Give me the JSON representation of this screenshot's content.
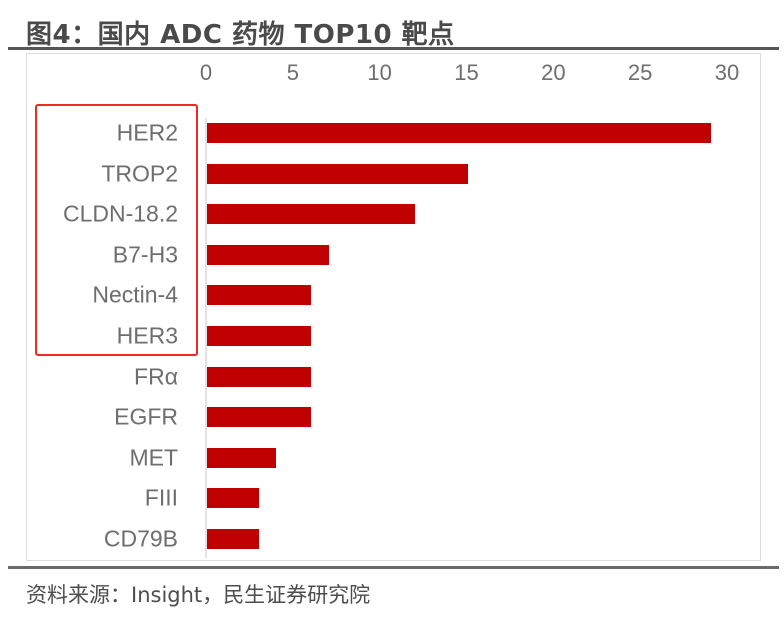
{
  "title": "图4：国内 ADC 药物 TOP10 靶点",
  "source": "资料来源：Insight，民生证券研究院",
  "colors": {
    "bar": "#c00000",
    "highlight_box": "#ee2a24",
    "text": "#6e6e6e"
  },
  "highlight": {
    "label": "highlighted-targets",
    "items": [
      "HER2",
      "TROP2",
      "CLDN-18.2",
      "B7-H3",
      "Nectin-4",
      "HER3"
    ]
  },
  "chart_data": {
    "type": "bar",
    "orientation": "horizontal",
    "title": "图4：国内 ADC 药物 TOP10 靶点",
    "xlabel": "",
    "ylabel": "",
    "xlim": [
      0,
      30
    ],
    "x_ticks": [
      "0",
      "5",
      "10",
      "15",
      "20",
      "25",
      "30"
    ],
    "x_axis_position": "top",
    "grid": false,
    "legend": null,
    "categories": [
      "HER2",
      "TROP2",
      "CLDN-18.2",
      "B7-H3",
      "Nectin-4",
      "HER3",
      "FRα",
      "EGFR",
      "MET",
      "FIII",
      "CD79B"
    ],
    "values": [
      29,
      15,
      12,
      7,
      6,
      6,
      6,
      6,
      4,
      3,
      3
    ],
    "annotations": [
      "Red box highlights HER2, TROP2, CLDN-18.2, B7-H3, Nectin-4, HER3"
    ]
  }
}
